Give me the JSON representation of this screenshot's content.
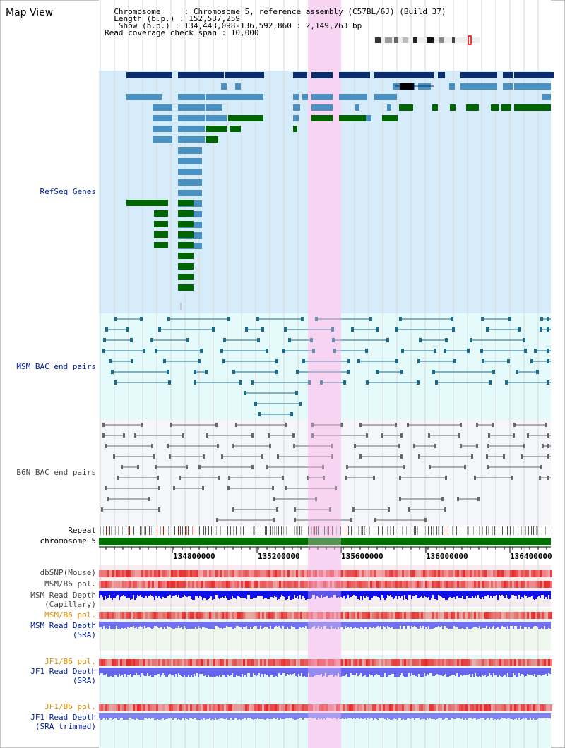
{
  "header": {
    "title": "Map View",
    "info_lines": [
      "  Chromosome     : Chromosome 5, reference assembly (C57BL/6J) (Build 37)",
      "  Length (b.p.) : 152,537,259",
      "   Show (b.p.) : 134,443,098-136,592,860 : 2,149,763 bp",
      "Read coverage check span : 10,000"
    ]
  },
  "tracks": {
    "refseq": "RefSeq Genes",
    "msm_bac": "MSM BAC end pairs",
    "b6n_bac": "B6N BAC end pairs",
    "repeat": "Repeat",
    "chromosome": "chromosome 5",
    "dbsnp": "dbSNP(Mouse)",
    "msm_pol": "MSM/B6 pol.",
    "msm_cap_1": "MSM Read Depth",
    "msm_cap_2": "(Capillary)",
    "msm_pol_sra": "MSM/B6 pol.",
    "msm_sra_1": "MSM Read Depth",
    "msm_sra_2": "(SRA)",
    "jf1_pol": "JF1/B6 pol.",
    "jf1_sra_1": "JF1 Read Depth",
    "jf1_sra_2": "(SRA)",
    "jf1_pol_t": "JF1/B6 pol.",
    "jf1_t_1": "JF1 Read Depth",
    "jf1_t_2": "(SRA trimmed)"
  },
  "axis": {
    "ticks": [
      "134800000",
      "135200000",
      "135600000",
      "136000000",
      "136400000"
    ]
  },
  "colors": {
    "refseq_bg": "#d7ecfa",
    "bac_bg": "#e5fbfb",
    "b6n_bg": "#f5f6fa",
    "highlight": "#f7d4f2",
    "gene_dark": "#0b2d6b",
    "gene_mid": "#4a90c0",
    "gene_green": "#006400",
    "chrom": "#007000",
    "label_blue": "#001ea0",
    "label_orange": "#e09000"
  }
}
